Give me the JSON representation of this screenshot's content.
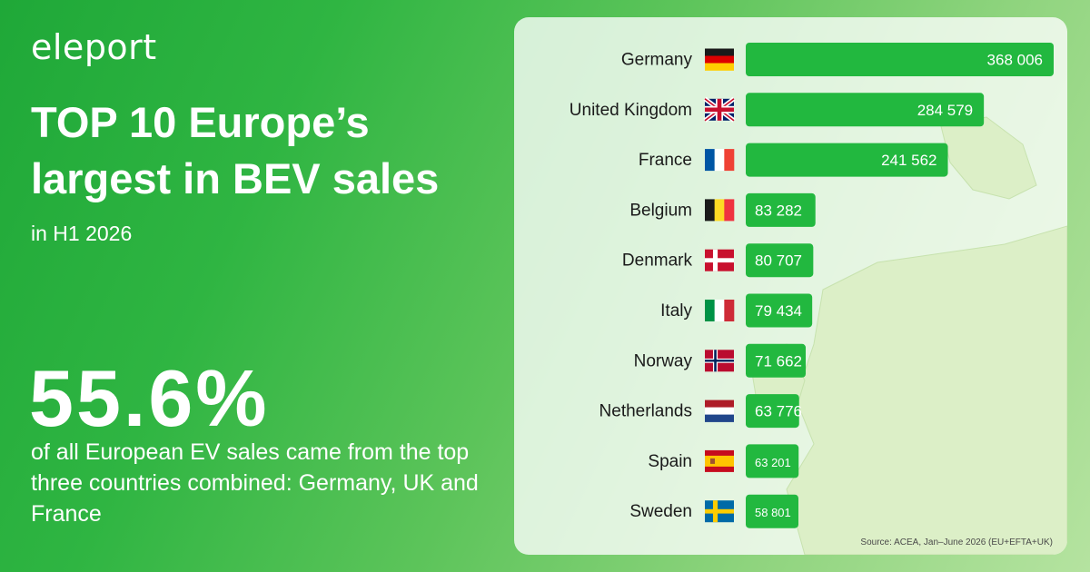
{
  "brand": {
    "logo_text": "eleport"
  },
  "headline": {
    "title": "TOP 10 Europe’s largest in BEV sales",
    "subtitle": "in H1 2026",
    "stat": "55.6%",
    "description": "of all European EV sales came from the top three countries combined: Germany, UK and France"
  },
  "colors": {
    "bar": "#22b83f",
    "accent_green": "#2fb542"
  },
  "chart_data": {
    "type": "bar",
    "orientation": "horizontal",
    "categories": [
      "Germany",
      "United Kingdom",
      "France",
      "Belgium",
      "Denmark",
      "Italy",
      "Norway",
      "Netherlands",
      "Spain",
      "Sweden"
    ],
    "values": [
      368006,
      284579,
      241562,
      83282,
      80707,
      79434,
      71662,
      63776,
      63201,
      58801
    ],
    "value_labels": [
      "368 006",
      "284 579",
      "241 562",
      "83 282",
      "80 707",
      "79 434",
      "71 662",
      "63 776",
      "63 201",
      "58 801"
    ],
    "flags": [
      "flag-germany-icon",
      "flag-uk-icon",
      "flag-france-icon",
      "flag-belgium-icon",
      "flag-denmark-icon",
      "flag-italy-icon",
      "flag-norway-icon",
      "flag-netherlands-icon",
      "flag-spain-icon",
      "flag-sweden-icon"
    ],
    "xlim": [
      0,
      368006
    ],
    "grid": false,
    "legend": "none"
  },
  "source": "Source: ACEA, Jan–June 2026 (EU+EFTA+UK)"
}
